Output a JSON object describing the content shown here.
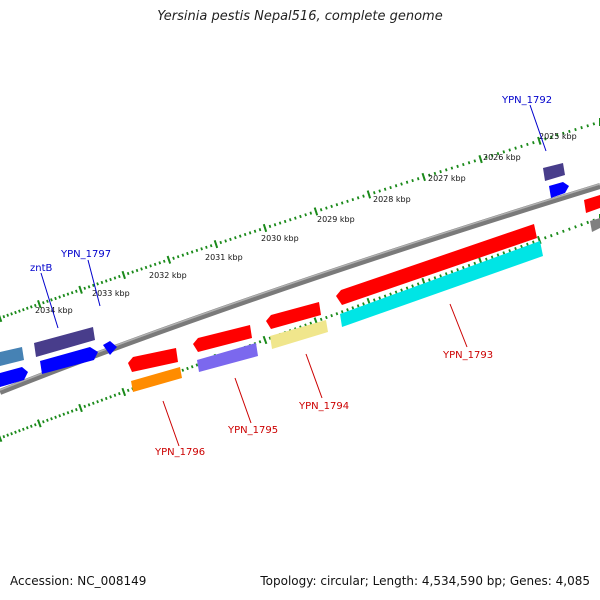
{
  "title": "Yersinia pestis Nepal516, complete genome",
  "footer": {
    "accession": "Accession: NC_008149",
    "info": "Topology: circular; Length: 4,534,590 bp; Genes: 4,085"
  },
  "colors": {
    "background": "#ffffff",
    "backbone": "#808080",
    "tick_dots": "#1a8a1a",
    "label_forward": "#0000cc",
    "label_reverse": "#cc0000",
    "gene_red": "#ff0000",
    "gene_orange": "#ff8c00",
    "gene_cyan": "#00e5e5",
    "gene_khaki": "#f0e68c",
    "gene_slateblue": "#7b68ee",
    "gene_darkslate": "#483d8b",
    "gene_blue": "#0000ff",
    "gene_steelblue": "#4682b4",
    "gene_gray": "#808080"
  },
  "ruler": {
    "unit": "kbp",
    "labels": [
      "2025 kbp",
      "2026 kbp",
      "2027 kbp",
      "2028 kbp",
      "2029 kbp",
      "2030 kbp",
      "2031 kbp",
      "2032 kbp",
      "2033 kbp",
      "2034 kbp"
    ]
  },
  "genes": [
    {
      "label": "YPN_1792",
      "strand": "forward",
      "color": "gene_darkslate"
    },
    {
      "label": "YPN_1793",
      "strand": "reverse",
      "color": "gene_cyan"
    },
    {
      "label": "YPN_1794",
      "strand": "reverse",
      "color": "gene_khaki"
    },
    {
      "label": "YPN_1795",
      "strand": "reverse",
      "color": "gene_slateblue"
    },
    {
      "label": "YPN_1796",
      "strand": "reverse",
      "color": "gene_orange"
    },
    {
      "label": "YPN_1797",
      "strand": "forward",
      "color": "gene_blue"
    },
    {
      "label": "zntB",
      "strand": "forward",
      "color": "gene_darkslate"
    }
  ]
}
